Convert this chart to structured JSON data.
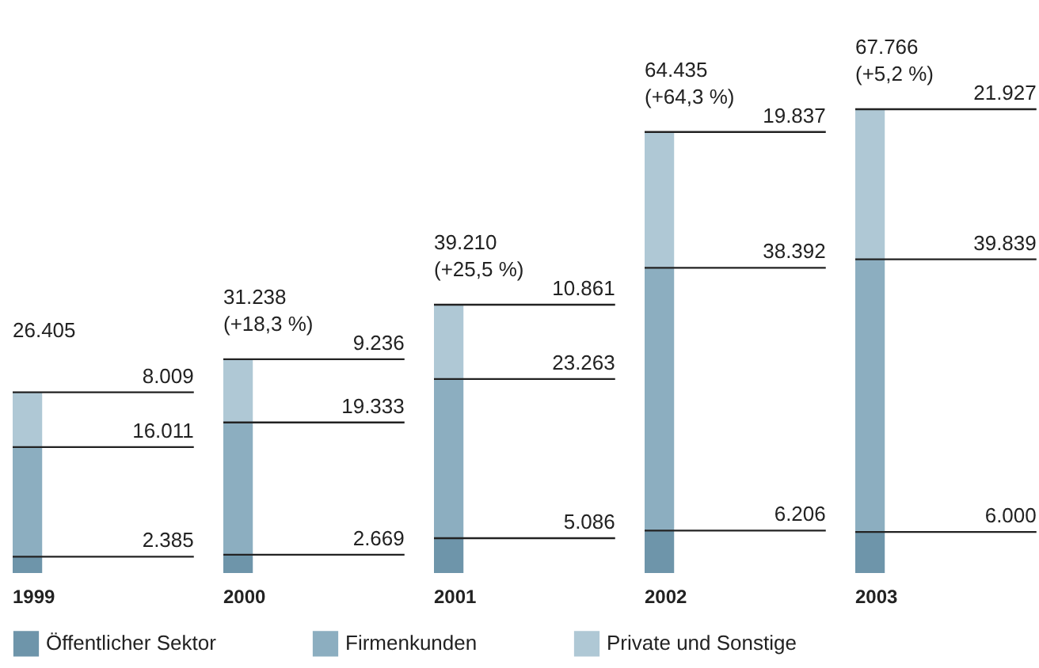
{
  "chart_data": {
    "type": "bar",
    "stacked": true,
    "categories": [
      "1999",
      "2000",
      "2001",
      "2002",
      "2003"
    ],
    "series": [
      {
        "name": "Öffentlicher Sektor",
        "color": "#6e95aa",
        "values": [
          2385,
          2669,
          5086,
          6206,
          6000
        ],
        "value_labels": [
          "2.385",
          "2.669",
          "5.086",
          "6.206",
          "6.000"
        ]
      },
      {
        "name": "Firmenkunden",
        "color": "#8caec0",
        "values": [
          16011,
          19333,
          23263,
          38392,
          39839
        ],
        "value_labels": [
          "16.011",
          "19.333",
          "23.263",
          "38.392",
          "39.839"
        ]
      },
      {
        "name": "Private und Sonstige",
        "color": "#afc8d5",
        "values": [
          8009,
          9236,
          10861,
          19837,
          21927
        ],
        "value_labels": [
          "8.009",
          "9.236",
          "10.861",
          "19.837",
          "21.927"
        ]
      }
    ],
    "totals": [
      "26.405",
      "31.238\n(+18,3 %)",
      "39.210\n(+25,5 %)",
      "64.435\n(+64,3 %)",
      "67.766\n(+5,2 %)"
    ],
    "legend": "bottom left",
    "grid": false
  }
}
